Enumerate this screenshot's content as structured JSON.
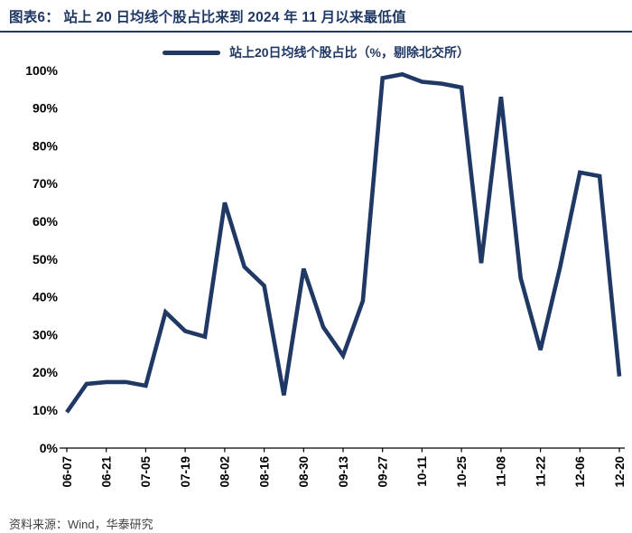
{
  "header": {
    "title": "图表6：  站上 20 日均线个股占比来到 2024 年 11 月以来最低值"
  },
  "legend": {
    "label": "站上20日均线个股占比（%，剔除北交所）"
  },
  "footer": {
    "source": "资料来源：Wind，华泰研究"
  },
  "colors": {
    "accent_navy": "#1F3864",
    "axis_text": "#000000",
    "source_text": "#3F3F3F",
    "background": "#FFFFFF"
  },
  "chart_data": {
    "type": "line",
    "title": "站上20日均线个股占比来到2024年11月以来最低值",
    "legend_label": "站上20日均线个股占比（%，剔除北交所）",
    "legend_position": "top-center",
    "grid": false,
    "line_color": "#1F3864",
    "ylim": [
      0,
      100
    ],
    "y_ticks": [
      0,
      10,
      20,
      30,
      40,
      50,
      60,
      70,
      80,
      90,
      100
    ],
    "y_tick_suffix": "%",
    "x_label_every": 2,
    "x": [
      "06-07",
      "06-14",
      "06-21",
      "06-28",
      "07-05",
      "07-12",
      "07-19",
      "07-26",
      "08-02",
      "08-09",
      "08-16",
      "08-23",
      "08-30",
      "09-06",
      "09-13",
      "09-20",
      "09-27",
      "09-30",
      "10-11",
      "10-18",
      "10-25",
      "11-01",
      "11-08",
      "11-15",
      "11-22",
      "11-29",
      "12-06",
      "12-13",
      "12-20"
    ],
    "values": [
      9.5,
      17,
      17.5,
      17.5,
      16.5,
      36,
      31,
      29.5,
      65,
      48,
      43,
      14,
      47.5,
      32,
      24.5,
      39,
      98,
      99,
      97,
      96.5,
      95.5,
      49,
      93,
      45,
      26,
      48,
      73,
      72,
      19
    ]
  }
}
